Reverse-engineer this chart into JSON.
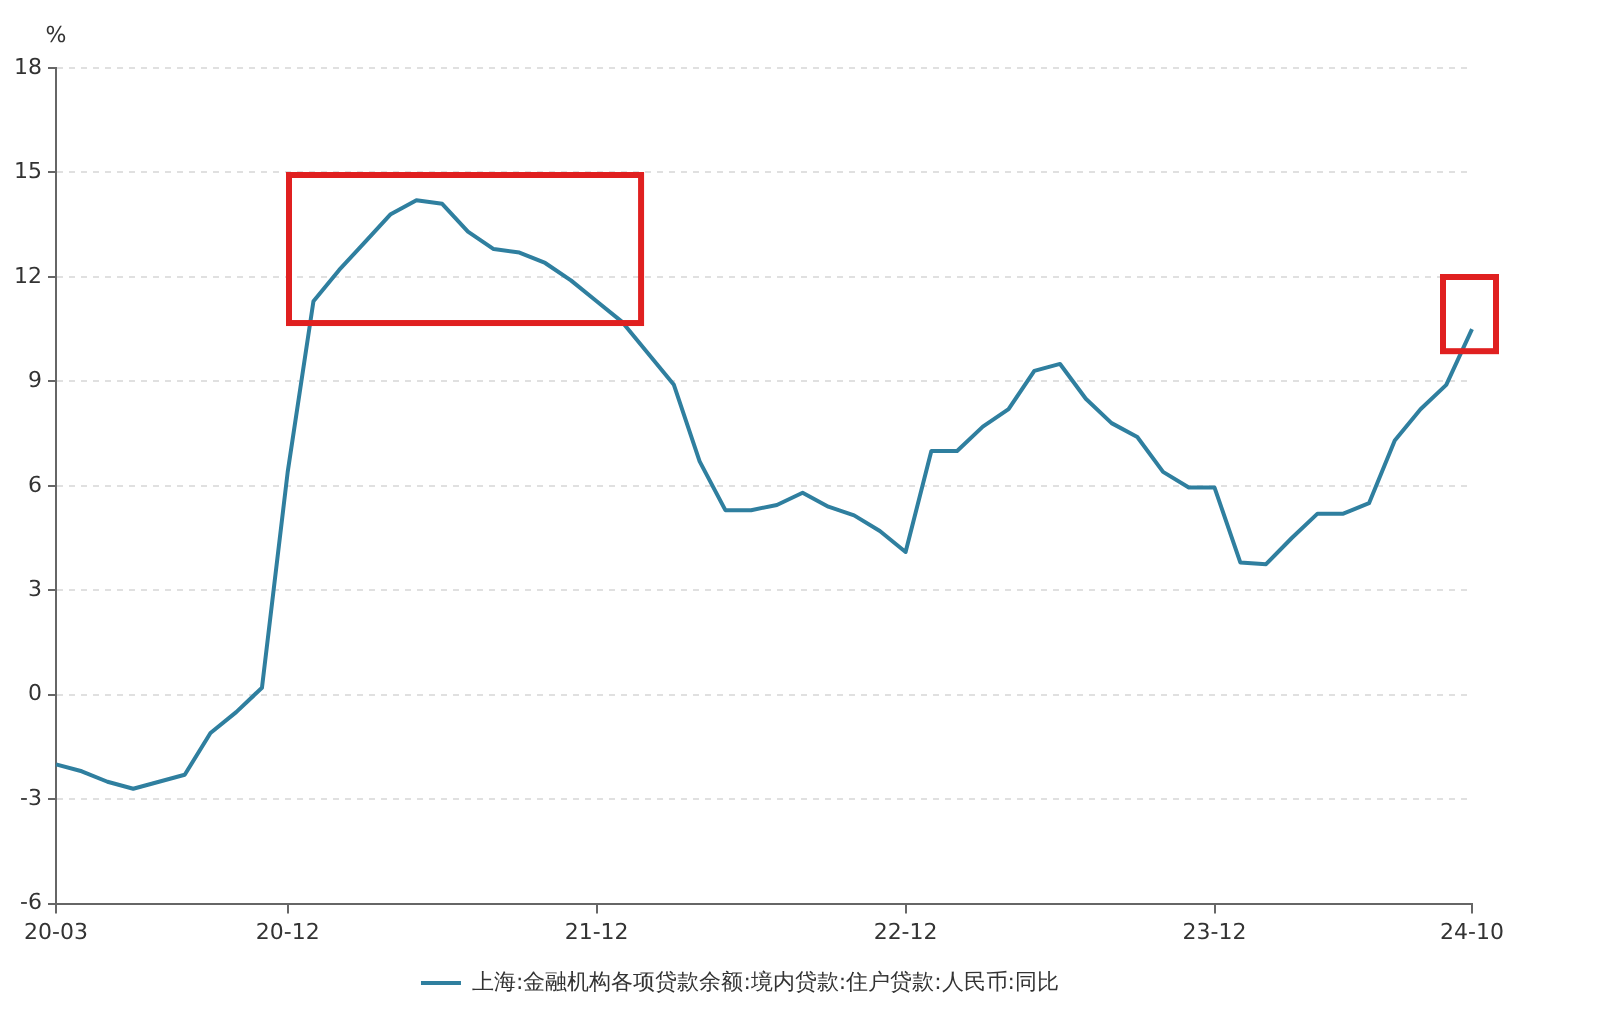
{
  "chart_data": {
    "type": "line",
    "ylabel": "%",
    "categories": [
      "20-03",
      null,
      null,
      null,
      null,
      null,
      null,
      null,
      null,
      "20-12",
      null,
      null,
      null,
      null,
      null,
      null,
      null,
      null,
      null,
      null,
      null,
      "21-12",
      null,
      null,
      null,
      null,
      null,
      null,
      null,
      null,
      null,
      null,
      null,
      "22-12",
      null,
      null,
      null,
      null,
      null,
      null,
      null,
      null,
      null,
      null,
      null,
      "23-12",
      null,
      null,
      null,
      null,
      null,
      null,
      null,
      null,
      null,
      "24-10"
    ],
    "series": [
      {
        "name": "上海:金融机构各项贷款余额:境内贷款:住户贷款:人民币:同比",
        "color": "#2f7f9f",
        "values": [
          -2.0,
          -2.2,
          -2.5,
          -2.7,
          -2.5,
          -2.3,
          -1.1,
          -0.5,
          0.2,
          6.4,
          11.3,
          12.2,
          13.0,
          13.8,
          14.2,
          14.1,
          13.3,
          12.8,
          12.7,
          12.4,
          11.9,
          11.3,
          10.7,
          9.8,
          8.9,
          6.7,
          5.3,
          5.3,
          5.45,
          5.8,
          5.4,
          5.15,
          4.7,
          4.1,
          7.0,
          7.0,
          7.7,
          8.2,
          9.3,
          9.5,
          8.5,
          7.8,
          7.4,
          6.4,
          5.95,
          5.95,
          3.8,
          3.75,
          4.5,
          5.2,
          5.2,
          5.5,
          7.3,
          8.2,
          8.9,
          10.5
        ]
      }
    ],
    "ylim": [
      -6,
      18
    ],
    "yticks": [
      -6,
      -3,
      0,
      3,
      6,
      9,
      12,
      15,
      18
    ],
    "grid": "y",
    "legend": "bottom",
    "marker": "none",
    "line_style": "solid"
  }
}
